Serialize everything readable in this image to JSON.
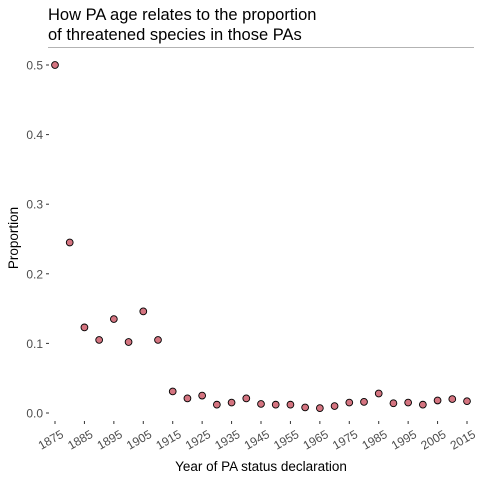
{
  "chart_data": {
    "type": "scatter",
    "title_lines": [
      "How PA age relates to the proportion",
      "of threatened species in those PAs"
    ],
    "xlabel": "Year of PA status declaration",
    "ylabel": "Proportion",
    "xlim": [
      1875,
      2015
    ],
    "ylim": [
      0,
      0.5
    ],
    "x_ticks": [
      1875,
      1885,
      1895,
      1905,
      1915,
      1925,
      1935,
      1945,
      1955,
      1965,
      1975,
      1985,
      1995,
      2005,
      2015
    ],
    "x_tick_labels": [
      "1875",
      "1885",
      "1895",
      "1905",
      "1915",
      "1925",
      "1935",
      "1945",
      "1955",
      "1965",
      "1975",
      "1985",
      "1995",
      "2005",
      "2015"
    ],
    "y_ticks": [
      0.0,
      0.1,
      0.2,
      0.3,
      0.4,
      0.5
    ],
    "y_tick_labels": [
      "0.0",
      "0.1",
      "0.2",
      "0.3",
      "0.4",
      "0.5"
    ],
    "grid": false,
    "point_fill": "#d47480",
    "point_stroke": "#000000",
    "points": [
      {
        "x": 1875,
        "y": 0.5
      },
      {
        "x": 1880,
        "y": 0.245
      },
      {
        "x": 1885,
        "y": 0.123
      },
      {
        "x": 1890,
        "y": 0.105
      },
      {
        "x": 1895,
        "y": 0.135
      },
      {
        "x": 1900,
        "y": 0.102
      },
      {
        "x": 1905,
        "y": 0.146
      },
      {
        "x": 1910,
        "y": 0.105
      },
      {
        "x": 1915,
        "y": 0.031
      },
      {
        "x": 1920,
        "y": 0.021
      },
      {
        "x": 1925,
        "y": 0.025
      },
      {
        "x": 1930,
        "y": 0.012
      },
      {
        "x": 1935,
        "y": 0.015
      },
      {
        "x": 1940,
        "y": 0.021
      },
      {
        "x": 1945,
        "y": 0.013
      },
      {
        "x": 1950,
        "y": 0.012
      },
      {
        "x": 1955,
        "y": 0.012
      },
      {
        "x": 1960,
        "y": 0.008
      },
      {
        "x": 1965,
        "y": 0.007
      },
      {
        "x": 1970,
        "y": 0.01
      },
      {
        "x": 1975,
        "y": 0.015
      },
      {
        "x": 1980,
        "y": 0.016
      },
      {
        "x": 1985,
        "y": 0.028
      },
      {
        "x": 1990,
        "y": 0.014
      },
      {
        "x": 1995,
        "y": 0.015
      },
      {
        "x": 2000,
        "y": 0.012
      },
      {
        "x": 2005,
        "y": 0.018
      },
      {
        "x": 2010,
        "y": 0.02
      },
      {
        "x": 2015,
        "y": 0.017
      }
    ]
  }
}
